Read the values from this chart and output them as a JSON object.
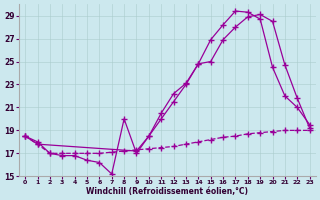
{
  "xlabel": "Windchill (Refroidissement éolien,°C)",
  "background_color": "#cce8ee",
  "line_color": "#990099",
  "ylim": [
    15,
    30
  ],
  "xlim": [
    -0.5,
    23.5
  ],
  "yticks": [
    15,
    17,
    19,
    21,
    23,
    25,
    27,
    29
  ],
  "xticks": [
    0,
    1,
    2,
    3,
    4,
    5,
    6,
    7,
    8,
    9,
    10,
    11,
    12,
    13,
    14,
    15,
    16,
    17,
    18,
    19,
    20,
    21,
    22,
    23
  ],
  "series1_x": [
    0,
    1,
    2,
    3,
    4,
    5,
    6,
    7,
    8,
    9,
    10,
    11,
    12,
    13,
    14,
    15,
    16,
    17,
    18,
    19,
    20,
    21,
    22,
    23
  ],
  "series1_y": [
    18.5,
    18.0,
    17.0,
    16.8,
    16.8,
    16.4,
    16.2,
    15.2,
    20.0,
    17.0,
    18.5,
    20.5,
    22.2,
    23.1,
    24.8,
    26.9,
    28.2,
    29.4,
    29.3,
    28.7,
    24.5,
    22.0,
    21.0,
    19.5
  ],
  "series2_x": [
    0,
    1,
    9,
    10,
    11,
    12,
    13,
    14,
    15,
    16,
    17,
    18,
    19,
    20,
    21,
    22,
    23
  ],
  "series2_y": [
    18.5,
    17.8,
    17.2,
    18.5,
    20.0,
    21.5,
    23.0,
    24.8,
    25.0,
    26.9,
    28.0,
    28.9,
    29.1,
    28.5,
    24.7,
    21.8,
    19.2
  ],
  "series3_x": [
    0,
    1,
    2,
    3,
    4,
    5,
    6,
    7,
    8,
    9,
    10,
    11,
    12,
    13,
    14,
    15,
    16,
    17,
    18,
    19,
    20,
    21,
    22,
    23
  ],
  "series3_y": [
    18.5,
    17.8,
    17.0,
    17.0,
    17.0,
    17.0,
    17.0,
    17.1,
    17.2,
    17.3,
    17.4,
    17.5,
    17.6,
    17.8,
    18.0,
    18.2,
    18.4,
    18.5,
    18.7,
    18.8,
    18.9,
    19.0,
    19.0,
    19.0
  ]
}
